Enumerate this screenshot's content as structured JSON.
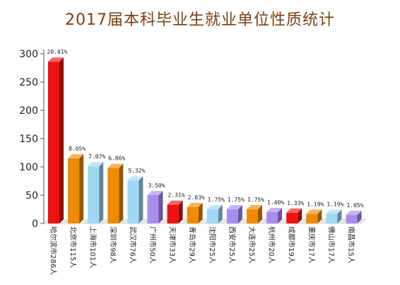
{
  "chart_data": {
    "type": "bar",
    "title": "2017届本科毕业生就业单位性质统计",
    "xlabel": "",
    "ylabel": "",
    "ylim": [
      0,
      300
    ],
    "yticks": [
      0,
      50,
      100,
      150,
      200,
      250,
      300
    ],
    "grid": false,
    "legend": "none",
    "categories": [
      "哈尔滨市286人",
      "北京市115人",
      "上海市101人",
      "深圳市98人",
      "武汉市76人",
      "广州市50人",
      "天津市33人",
      "青岛市29人",
      "沈阳市25人",
      "西安市25人",
      "大连市25人",
      "杭州市20人",
      "成都市19人",
      "重庆市17人",
      "佛山市17人",
      "南昌市15人"
    ],
    "values": [
      286,
      115,
      101,
      98,
      76,
      50,
      33,
      29,
      25,
      25,
      25,
      20,
      19,
      17,
      17,
      15
    ],
    "data_labels": [
      "20.01%",
      "8.05%",
      "7.07%",
      "6.86%",
      "5.32%",
      "3.50%",
      "2.31%",
      "2.03%",
      "1.75%",
      "1.75%",
      "1.75%",
      "1.40%",
      "1.33%",
      "1.19%",
      "1.19%",
      "1.05%"
    ],
    "colors": [
      "#ee1111",
      "#f08a00",
      "#9fd8f5",
      "#f08a00",
      "#9fd8f5",
      "#a98cf0",
      "#ee1111",
      "#f08a00",
      "#9fd8f5",
      "#a98cf0",
      "#f08a00",
      "#a98cf0",
      "#ee1111",
      "#f08a00",
      "#9fd8f5",
      "#a98cf0"
    ]
  }
}
